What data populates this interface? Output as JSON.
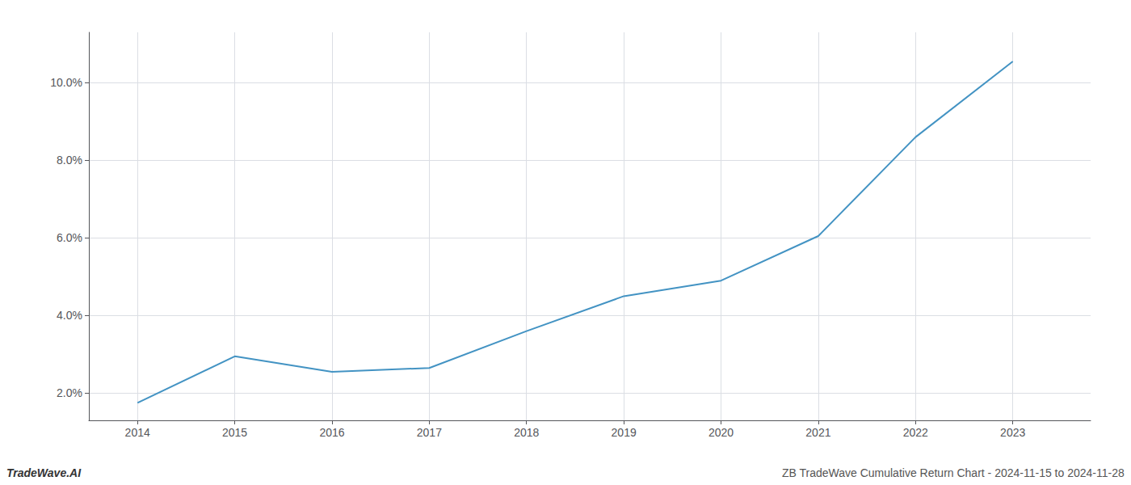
{
  "chart_data": {
    "type": "line",
    "x": [
      2014,
      2015,
      2016,
      2017,
      2018,
      2019,
      2020,
      2021,
      2022,
      2023
    ],
    "values": [
      1.75,
      2.95,
      2.55,
      2.65,
      3.6,
      4.5,
      4.9,
      6.05,
      8.6,
      10.55
    ],
    "color": "#4393c3",
    "xlim": [
      2013.5,
      2023.8
    ],
    "xticks": [
      2014,
      2015,
      2016,
      2017,
      2018,
      2019,
      2020,
      2021,
      2022,
      2023
    ],
    "ylim": [
      1.3,
      11.3
    ],
    "yticks": [
      {
        "value": 2.0,
        "label": "2.0%"
      },
      {
        "value": 4.0,
        "label": "4.0%"
      },
      {
        "value": 6.0,
        "label": "6.0%"
      },
      {
        "value": 8.0,
        "label": "8.0%"
      },
      {
        "value": 10.0,
        "label": "10.0%"
      }
    ],
    "grid": true,
    "annotations": [
      "TradeWave.AI",
      "ZB TradeWave Cumulative Return Chart - 2024-11-15 to 2024-11-28"
    ]
  }
}
